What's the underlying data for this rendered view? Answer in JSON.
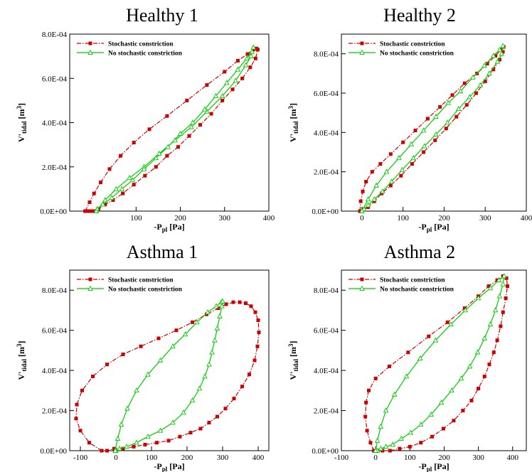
{
  "chart_data": [
    {
      "type": "line",
      "title": "Healthy 1",
      "xlabel": "-P_pl [Pa]",
      "ylabel": "V'_tidal [m^3]",
      "xlim": [
        -50,
        400
      ],
      "ylim": [
        0,
        0.0008
      ],
      "xticks": [
        "100",
        "200",
        "300",
        "400"
      ],
      "yticks": [
        "0.0E+00",
        "2.0E-04",
        "4.0E-04",
        "6.0E-04",
        "8.0E-04"
      ],
      "legend_position": "top-left",
      "series": [
        {
          "name": "Stochastic constriction",
          "color": "#cc0000",
          "x": [
            -15,
            -5,
            5,
            20,
            40,
            65,
            95,
            130,
            170,
            215,
            260,
            300,
            330,
            352,
            365,
            372,
            375,
            370,
            358,
            340,
            318,
            295,
            270,
            245,
            220,
            195,
            170,
            145,
            120,
            95,
            70,
            48,
            30,
            15,
            5,
            0,
            -5,
            -10,
            -15
          ],
          "y": [
            0.0,
            4e-05,
            8e-05,
            0.00013,
            0.00019,
            0.00025,
            0.00031,
            0.00037,
            0.00043,
            0.0005,
            0.00057,
            0.00063,
            0.00068,
            0.00071,
            0.00073,
            0.000735,
            0.00073,
            0.00069,
            0.00065,
            0.0006,
            0.00055,
            0.0005,
            0.00044,
            0.00039,
            0.00034,
            0.00029,
            0.00025,
            0.0002,
            0.00016,
            0.00012,
            8e-05,
            5e-05,
            3e-05,
            1e-05,
            0.0,
            0.0,
            0.0,
            0.0,
            0.0
          ]
        },
        {
          "name": "No stochastic constriction",
          "color": "#00cc00",
          "x": [
            10,
            30,
            55,
            85,
            118,
            152,
            188,
            225,
            260,
            295,
            325,
            348,
            360,
            365,
            362,
            350,
            330,
            305,
            280,
            255,
            228,
            200,
            172,
            145,
            118,
            92,
            68,
            45,
            25,
            12,
            10
          ],
          "y": [
            0.0,
            5e-05,
            0.0001,
            0.00015,
            0.0002,
            0.00026,
            0.00032,
            0.00038,
            0.00045,
            0.00052,
            0.00059,
            0.00066,
            0.0007,
            0.00074,
            0.00072,
            0.00069,
            0.00064,
            0.00058,
            0.00052,
            0.00046,
            0.0004,
            0.00035,
            0.00029,
            0.00024,
            0.00019,
            0.00014,
            0.0001,
            6e-05,
            3e-05,
            1e-05,
            0.0
          ]
        }
      ]
    },
    {
      "type": "line",
      "title": "Healthy 2",
      "xlabel": "-P_pl [Pa]",
      "ylabel": "V'_tidal [m^3]",
      "xlim": [
        -50,
        400
      ],
      "ylim": [
        0,
        0.0009
      ],
      "xticks": [
        "0",
        "100",
        "200",
        "300",
        "400"
      ],
      "yticks": [
        "0.0E+00",
        "2.0E-04",
        "4.0E-04",
        "6.0E-04",
        "8.0E-04"
      ],
      "legend_position": "top-left",
      "series": [
        {
          "name": "Stochastic constriction",
          "color": "#cc0000",
          "x": [
            -5,
            -3,
            2,
            10,
            25,
            45,
            70,
            100,
            130,
            160,
            190,
            220,
            250,
            280,
            305,
            325,
            338,
            345,
            343,
            335,
            320,
            300,
            278,
            255,
            230,
            205,
            178,
            150,
            122,
            95,
            70,
            48,
            30,
            15,
            5,
            0,
            -5
          ],
          "y": [
            0.0,
            5e-05,
            0.0001,
            0.00015,
            0.0002,
            0.00024,
            0.00029,
            0.00035,
            0.00041,
            0.00047,
            0.00053,
            0.00059,
            0.00065,
            0.0007,
            0.00075,
            0.00079,
            0.00082,
            0.000835,
            0.00081,
            0.00077,
            0.00072,
            0.00066,
            0.0006,
            0.00054,
            0.00048,
            0.00042,
            0.00036,
            0.0003,
            0.00024,
            0.00018,
            0.00013,
            9e-05,
            5e-05,
            2e-05,
            1e-05,
            0.0,
            0.0
          ]
        },
        {
          "name": "No stochastic constriction",
          "color": "#00cc00",
          "x": [
            0,
            15,
            35,
            60,
            90,
            120,
            150,
            180,
            210,
            240,
            270,
            298,
            320,
            335,
            343,
            340,
            330,
            310,
            288,
            262,
            235,
            208,
            180,
            152,
            125,
            98,
            72,
            50,
            30,
            15,
            5,
            0
          ],
          "y": [
            0.0,
            6e-05,
            0.00013,
            0.0002,
            0.00027,
            0.00034,
            0.00041,
            0.00048,
            0.00055,
            0.00061,
            0.00068,
            0.00074,
            0.00079,
            0.00082,
            0.00084,
            0.0008,
            0.00076,
            0.0007,
            0.00064,
            0.00058,
            0.00052,
            0.00045,
            0.00039,
            0.00033,
            0.00027,
            0.00021,
            0.00015,
            0.0001,
            6e-05,
            3e-05,
            1e-05,
            0.0
          ]
        }
      ]
    },
    {
      "type": "line",
      "title": "Asthma 1",
      "xlabel": "-P_pl [Pa]",
      "ylabel": "V'_tidal [m^3]",
      "xlim": [
        -130,
        430
      ],
      "ylim": [
        0,
        0.0009
      ],
      "xticks": [
        "-100",
        "0",
        "100",
        "200",
        "300",
        "400"
      ],
      "yticks": [
        "0.0E+00",
        "2.0E-04",
        "4.0E-04",
        "6.0E-04",
        "8.0E-04"
      ],
      "legend_position": "top-left",
      "series": [
        {
          "name": "Stochastic constriction",
          "color": "#cc0000",
          "x": [
            -40,
            -75,
            -100,
            -112,
            -110,
            -95,
            -65,
            -25,
            20,
            70,
            120,
            170,
            215,
            255,
            288,
            310,
            330,
            348,
            365,
            380,
            392,
            400,
            402,
            398,
            390,
            375,
            355,
            332,
            308,
            285,
            262,
            238,
            210,
            180,
            148,
            115,
            82,
            50,
            20,
            -5,
            -25,
            -40
          ],
          "y": [
            0.0,
            4e-05,
            0.0001,
            0.00016,
            0.00023,
            0.0003,
            0.00037,
            0.00043,
            0.00048,
            0.00052,
            0.00056,
            0.0006,
            0.00064,
            0.00068,
            0.00071,
            0.00073,
            0.00074,
            0.00074,
            0.000735,
            0.00072,
            0.00069,
            0.00065,
            0.00059,
            0.00052,
            0.00045,
            0.00038,
            0.00032,
            0.00026,
            0.00021,
            0.00017,
            0.00014,
            0.00011,
            9e-05,
            7e-05,
            5e-05,
            4e-05,
            3e-05,
            2e-05,
            1e-05,
            1e-05,
            0.0,
            0.0
          ]
        },
        {
          "name": "No stochastic constriction",
          "color": "#00cc00",
          "x": [
            -2,
            5,
            15,
            32,
            58,
            90,
            125,
            160,
            195,
            228,
            258,
            282,
            296,
            300,
            298,
            292,
            285,
            278,
            270,
            262,
            250,
            235,
            215,
            190,
            160,
            125,
            90,
            58,
            30,
            10,
            0,
            -2
          ],
          "y": [
            0.0,
            6e-05,
            0.00013,
            0.00021,
            0.0003,
            0.00038,
            0.00045,
            0.00052,
            0.00058,
            0.00064,
            0.00069,
            0.00072,
            0.00074,
            0.000745,
            0.00072,
            0.00067,
            0.00061,
            0.00055,
            0.00049,
            0.00043,
            0.00037,
            0.00031,
            0.00025,
            0.00019,
            0.00014,
            0.0001,
            7e-05,
            4e-05,
            2e-05,
            1e-05,
            0.0,
            0.0
          ]
        }
      ]
    },
    {
      "type": "line",
      "title": "Asthma 2",
      "xlabel": "-P_pl [Pa]",
      "ylabel": "V'_tidal [m^3]",
      "xlim": [
        -100,
        440
      ],
      "ylim": [
        0,
        0.0009
      ],
      "xticks": [
        "-100",
        "0",
        "100",
        "200",
        "300",
        "400"
      ],
      "yticks": [
        "0.0E+00",
        "2.0E-04",
        "4.0E-04",
        "6.0E-04",
        "8.0E-04"
      ],
      "legend_position": "top-left",
      "series": [
        {
          "name": "Stochastic constriction",
          "color": "#cc0000",
          "x": [
            -5,
            -15,
            -25,
            -30,
            -28,
            -20,
            0,
            40,
            95,
            155,
            210,
            260,
            300,
            330,
            355,
            372,
            382,
            385,
            380,
            372,
            365,
            355,
            345,
            332,
            318,
            300,
            280,
            255,
            228,
            198,
            165,
            132,
            100,
            70,
            42,
            20,
            5,
            -5
          ],
          "y": [
            0.0,
            4e-05,
            0.0001,
            0.00017,
            0.00024,
            0.0003,
            0.00036,
            0.00042,
            0.00049,
            0.00057,
            0.00064,
            0.00071,
            0.00077,
            0.00082,
            0.00085,
            0.00087,
            0.00086,
            0.00082,
            0.00076,
            0.00069,
            0.00062,
            0.00055,
            0.00049,
            0.00043,
            0.00037,
            0.00031,
            0.00025,
            0.0002,
            0.00015,
            0.00011,
            7e-05,
            4e-05,
            2e-05,
            1e-05,
            0.0,
            0.0,
            0.0,
            0.0
          ]
        },
        {
          "name": "No stochastic constriction",
          "color": "#00cc00",
          "x": [
            0,
            5,
            15,
            30,
            55,
            90,
            130,
            175,
            220,
            262,
            300,
            335,
            360,
            375,
            372,
            362,
            350,
            335,
            318,
            298,
            275,
            250,
            222,
            192,
            162,
            132,
            102,
            75,
            50,
            30,
            15,
            5,
            0
          ],
          "y": [
            0.0,
            5e-05,
            0.00012,
            0.0002,
            0.00028,
            0.00037,
            0.00046,
            0.00055,
            0.00063,
            0.0007,
            0.00076,
            0.00081,
            0.00085,
            0.00087,
            0.00083,
            0.00077,
            0.0007,
            0.00063,
            0.00056,
            0.00049,
            0.00042,
            0.00036,
            0.0003,
            0.00024,
            0.00018,
            0.00013,
            9e-05,
            6e-05,
            3e-05,
            2e-05,
            1e-05,
            0.0,
            0.0
          ]
        }
      ]
    }
  ]
}
